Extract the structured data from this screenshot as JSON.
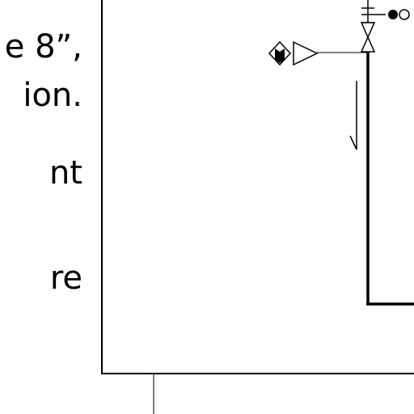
{
  "slide_text": {
    "lines": [
      "e 8”,",
      "ion.",
      "nt",
      "re"
    ]
  },
  "diagram": {
    "line_color": "#000000",
    "background": "#ffffff",
    "components": [
      "gate-valve-symbol",
      "control-valve-symbol",
      "signal-line",
      "flow-direction-arrow",
      "pipe-line",
      "diagram-frame"
    ]
  }
}
